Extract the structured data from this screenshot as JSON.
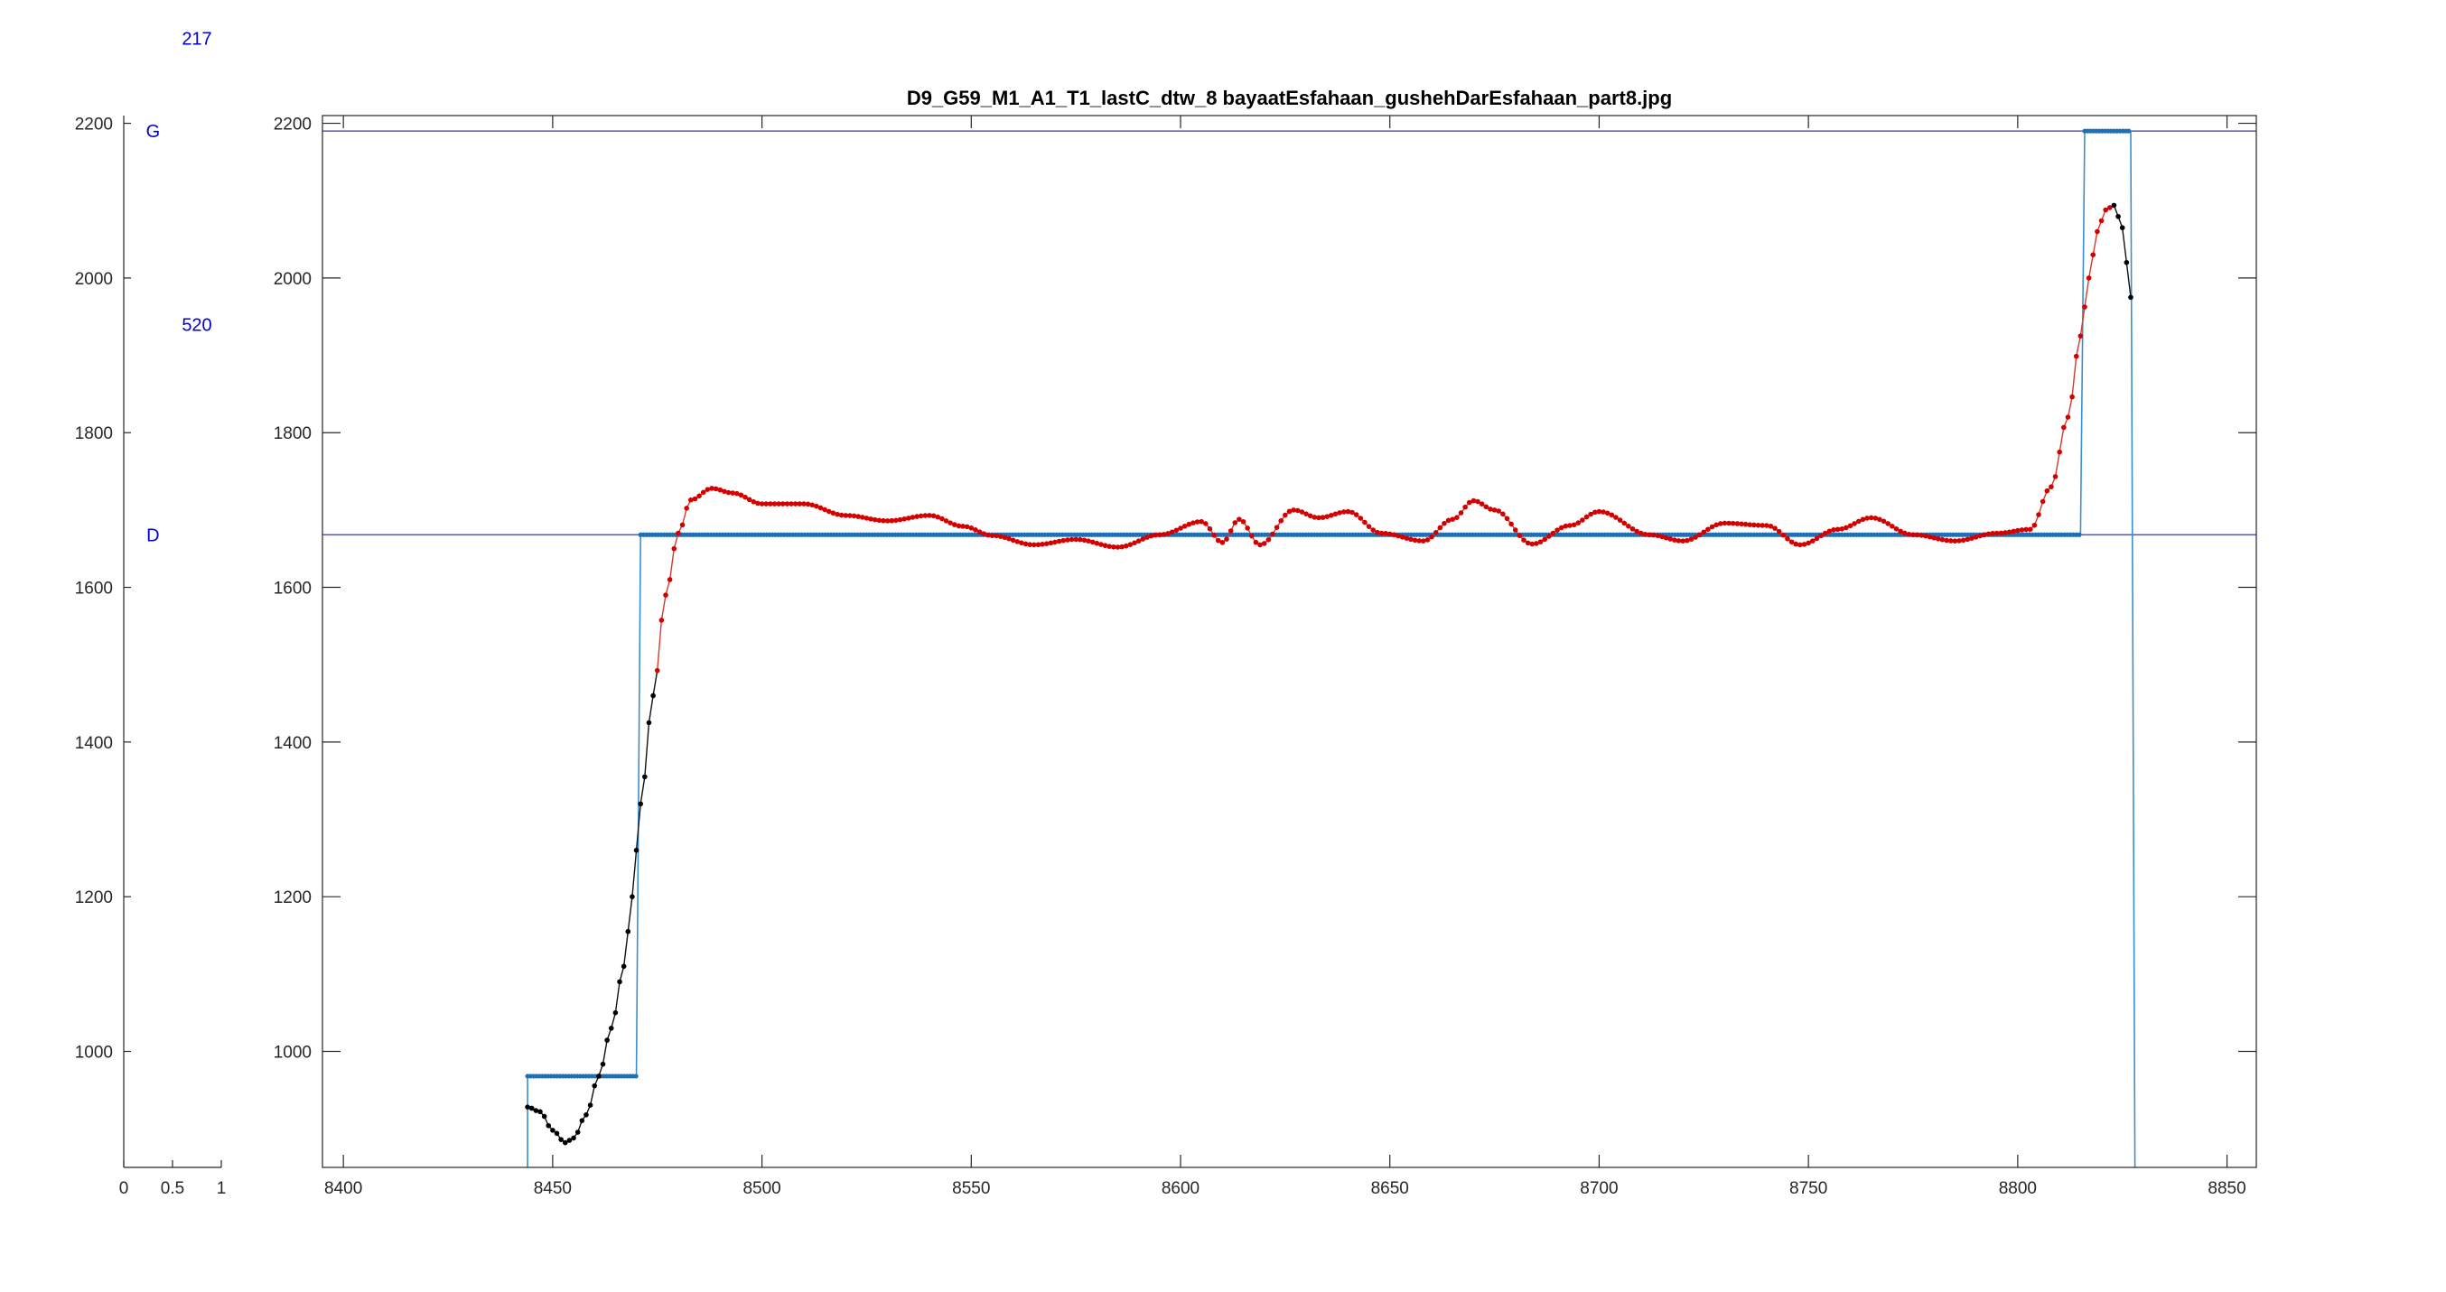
{
  "chart_data": [
    {
      "type": "bar",
      "title": "",
      "xlabel": "",
      "ylabel": "",
      "xlim": [
        0,
        1
      ],
      "ylim": [
        850,
        2210
      ],
      "xticks": [
        0,
        0.5,
        1
      ],
      "xtick_labels": [
        "0",
        "0.5",
        "1"
      ],
      "yticks": [
        1000,
        1200,
        1400,
        1600,
        1800,
        2000,
        2200
      ],
      "ytick_labels": [
        "1000",
        "1200",
        "1400",
        "1600",
        "1800",
        "2000",
        "2200"
      ],
      "annotations": [
        {
          "text": "217",
          "x": 0.75,
          "y": 2310
        },
        {
          "text": "G",
          "x": 0.3,
          "y": 2190
        },
        {
          "text": "520",
          "x": 0.75,
          "y": 1940
        },
        {
          "text": "D",
          "x": 0.3,
          "y": 1668
        }
      ]
    },
    {
      "type": "line",
      "title": "D9_G59_M1_A1_T1_lastC_dtw_8 bayaatEsfahaan_gushehDarEsfahaan_part8.jpg",
      "xlabel": "",
      "ylabel": "",
      "xlim": [
        8395,
        8857
      ],
      "ylim": [
        850,
        2210
      ],
      "grid": false,
      "xticks": [
        8400,
        8450,
        8500,
        8550,
        8600,
        8650,
        8700,
        8750,
        8800,
        8850
      ],
      "xtick_labels": [
        "8400",
        "8450",
        "8500",
        "8550",
        "8600",
        "8650",
        "8700",
        "8750",
        "8800",
        "8850"
      ],
      "yticks": [
        1000,
        1200,
        1400,
        1600,
        1800,
        2000,
        2200
      ],
      "ytick_labels": [
        "1000",
        "1200",
        "1400",
        "1600",
        "1800",
        "2000",
        "2200"
      ],
      "reference_lines": [
        {
          "label": "G",
          "y": 2190,
          "color": "#3a3a9a"
        },
        {
          "label": "D",
          "y": 1668,
          "color": "#3a3a9a"
        }
      ],
      "series": [
        {
          "kind": "step",
          "color": "#3b8fd0",
          "marker_color": "#1f6fb5",
          "points": [
            [
              8444,
              850
            ],
            [
              8444,
              968
            ],
            [
              8470,
              968
            ],
            [
              8471,
              1668
            ],
            [
              8815,
              1668
            ],
            [
              8816,
              2190
            ],
            [
              8827,
              2190
            ],
            [
              8828,
              850
            ]
          ]
        },
        {
          "kind": "pitch",
          "line_color_in": "#d43a2a",
          "line_color_out": "#111111",
          "marker_color_in": "#d40000",
          "marker_color_out": "#000000",
          "keypoints": [
            [
              8444,
              928
            ],
            [
              8447,
              922
            ],
            [
              8450,
              898
            ],
            [
              8453,
              882
            ],
            [
              8455,
              888
            ],
            [
              8458,
              918
            ],
            [
              8461,
              968
            ],
            [
              8464,
              1030
            ],
            [
              8467,
              1110
            ],
            [
              8469,
              1200
            ],
            [
              8471,
              1320
            ],
            [
              8474,
              1460
            ],
            [
              8477,
              1590
            ],
            [
              8480,
              1670
            ],
            [
              8483,
              1713
            ],
            [
              8488,
              1728
            ],
            [
              8493,
              1722
            ],
            [
              8500,
              1708
            ],
            [
              8510,
              1708
            ],
            [
              8520,
              1693
            ],
            [
              8530,
              1686
            ],
            [
              8540,
              1693
            ],
            [
              8548,
              1679
            ],
            [
              8555,
              1667
            ],
            [
              8565,
              1655
            ],
            [
              8575,
              1662
            ],
            [
              8585,
              1652
            ],
            [
              8595,
              1668
            ],
            [
              8605,
              1685
            ],
            [
              8610,
              1658
            ],
            [
              8614,
              1688
            ],
            [
              8619,
              1655
            ],
            [
              8627,
              1700
            ],
            [
              8633,
              1690
            ],
            [
              8640,
              1698
            ],
            [
              8648,
              1670
            ],
            [
              8658,
              1660
            ],
            [
              8665,
              1688
            ],
            [
              8670,
              1712
            ],
            [
              8675,
              1700
            ],
            [
              8684,
              1656
            ],
            [
              8693,
              1680
            ],
            [
              8700,
              1698
            ],
            [
              8712,
              1668
            ],
            [
              8720,
              1660
            ],
            [
              8730,
              1683
            ],
            [
              8740,
              1680
            ],
            [
              8748,
              1655
            ],
            [
              8757,
              1675
            ],
            [
              8765,
              1690
            ],
            [
              8775,
              1668
            ],
            [
              8785,
              1660
            ],
            [
              8795,
              1670
            ],
            [
              8803,
              1675
            ],
            [
              8808,
              1730
            ],
            [
              8812,
              1820
            ],
            [
              8815,
              1925
            ],
            [
              8817,
              2000
            ],
            [
              8819,
              2060
            ],
            [
              8821,
              2088
            ],
            [
              8823,
              2094
            ],
            [
              8825,
              2065
            ],
            [
              8826,
              2020
            ],
            [
              8827,
              1975
            ]
          ]
        }
      ]
    }
  ]
}
